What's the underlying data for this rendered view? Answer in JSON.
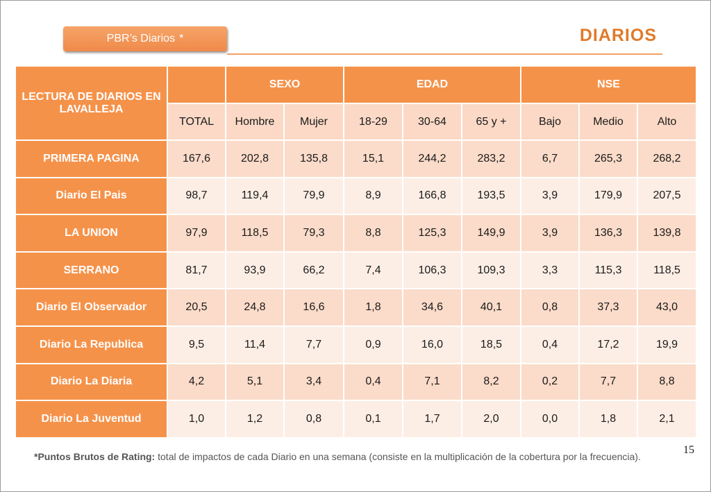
{
  "header": {
    "tag_label": "PBR’s Diarios",
    "tag_star": "*",
    "title": "DIARIOS"
  },
  "table": {
    "corner_label": "LECTURA DE DIARIOS EN LAVALLEJA",
    "groups": [
      "SEXO",
      "EDAD",
      "NSE"
    ],
    "columns": [
      "TOTAL",
      "Hombre",
      "Mujer",
      "18-29",
      "30-64",
      "65 y +",
      "Bajo",
      "Medio",
      "Alto"
    ],
    "rows": [
      {
        "label": "PRIMERA PAGINA",
        "values": [
          "167,6",
          "202,8",
          "135,8",
          "15,1",
          "244,2",
          "283,2",
          "6,7",
          "265,3",
          "268,2"
        ]
      },
      {
        "label": "Diario El Pais",
        "values": [
          "98,7",
          "119,4",
          "79,9",
          "8,9",
          "166,8",
          "193,5",
          "3,9",
          "179,9",
          "207,5"
        ]
      },
      {
        "label": "LA UNION",
        "values": [
          "97,9",
          "118,5",
          "79,3",
          "8,8",
          "125,3",
          "149,9",
          "3,9",
          "136,3",
          "139,8"
        ]
      },
      {
        "label": "SERRANO",
        "values": [
          "81,7",
          "93,9",
          "66,2",
          "7,4",
          "106,3",
          "109,3",
          "3,3",
          "115,3",
          "118,5"
        ]
      },
      {
        "label": "Diario El Observador",
        "values": [
          "20,5",
          "24,8",
          "16,6",
          "1,8",
          "34,6",
          "40,1",
          "0,8",
          "37,3",
          "43,0"
        ]
      },
      {
        "label": "Diario La Republica",
        "values": [
          "9,5",
          "11,4",
          "7,7",
          "0,9",
          "16,0",
          "18,5",
          "0,4",
          "17,2",
          "19,9"
        ]
      },
      {
        "label": "Diario La Diaria",
        "values": [
          "4,2",
          "5,1",
          "3,4",
          "0,4",
          "7,1",
          "8,2",
          "0,2",
          "7,7",
          "8,8"
        ]
      },
      {
        "label": "Diario La Juventud",
        "values": [
          "1,0",
          "1,2",
          "0,8",
          "0,1",
          "1,7",
          "2,0",
          "0,0",
          "1,8",
          "2,1"
        ]
      }
    ]
  },
  "page_number": "15",
  "footnote": {
    "bold": "*Puntos Brutos de Rating:",
    "text": " total de impactos de cada Diario en una semana (consiste en la multiplicación de la cobertura por la frecuencia)."
  },
  "colors": {
    "accent_orange": "#f5924a",
    "title_orange": "#e07a2a",
    "cell_light": "#fbdbc9",
    "cell_lighter": "#fdeee5"
  }
}
